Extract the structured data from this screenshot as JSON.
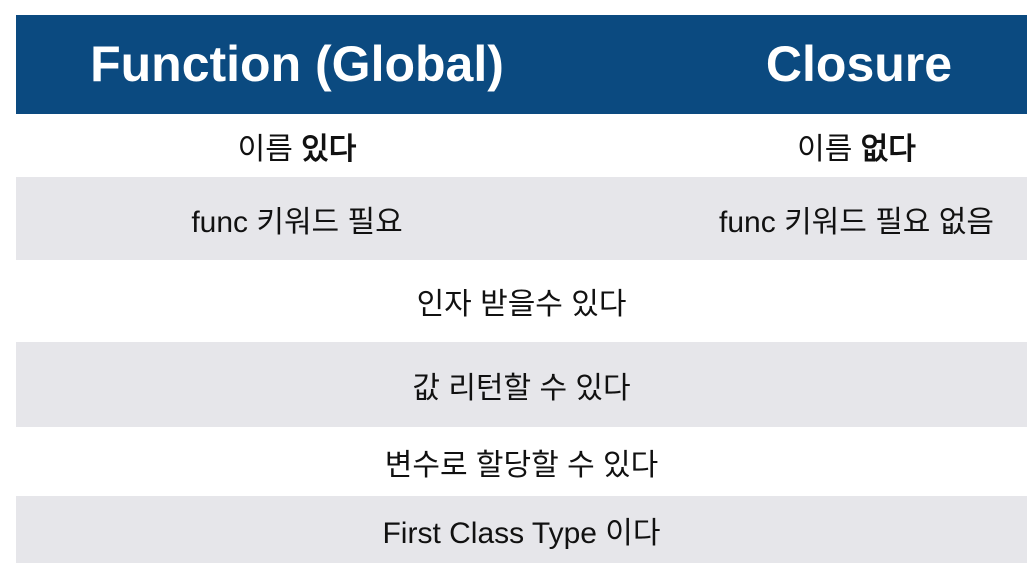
{
  "header": {
    "left": "Function (Global)",
    "right": "Closure"
  },
  "rows": [
    {
      "left": {
        "normal": "이름 ",
        "bold": "있다"
      },
      "right": {
        "normal": "이름 ",
        "bold": "없다"
      }
    },
    {
      "left": {
        "normal": "func 키워드 필요"
      },
      "right": {
        "normal": "func 키워드 필요 없음"
      }
    },
    {
      "full": "인자 받을수 있다"
    },
    {
      "full": "값 리턴할 수 있다"
    },
    {
      "full": "변수로 할당할 수 있다"
    },
    {
      "full": "First Class Type 이다"
    }
  ],
  "colors": {
    "header_bg": "#0b4a80",
    "header_text": "#ffffff",
    "stripe": "#e6e6ea"
  }
}
